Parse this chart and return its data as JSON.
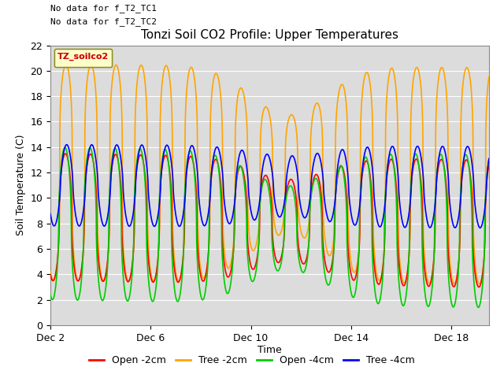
{
  "title": "Tonzi Soil CO2 Profile: Upper Temperatures",
  "xlabel": "Time",
  "ylabel": "Soil Temperature (C)",
  "top_left_text1": "No data for f_T2_TC1",
  "top_left_text2": "No data for f_T2_TC2",
  "legend_label_text": "TZ_soilco2",
  "ylim": [
    0,
    22
  ],
  "xlim_days": [
    2.0,
    19.5
  ],
  "xtick_positions": [
    2,
    6,
    10,
    14,
    18
  ],
  "xtick_labels": [
    "Dec 2",
    "Dec 6",
    "Dec 10",
    "Dec 14",
    "Dec 18"
  ],
  "colors": {
    "open_2cm": "#FF0000",
    "tree_2cm": "#FFA500",
    "open_4cm": "#00CC00",
    "tree_4cm": "#0000FF"
  },
  "legend_entries": [
    {
      "label": "Open -2cm",
      "color": "#FF0000"
    },
    {
      "label": "Tree -2cm",
      "color": "#FFA500"
    },
    {
      "label": "Open -4cm",
      "color": "#00CC00"
    },
    {
      "label": "Tree -4cm",
      "color": "#0000FF"
    }
  ],
  "plot_bg_color": "#DCDCDC",
  "yticks": [
    0,
    2,
    4,
    6,
    8,
    10,
    12,
    14,
    16,
    18,
    20,
    22
  ]
}
